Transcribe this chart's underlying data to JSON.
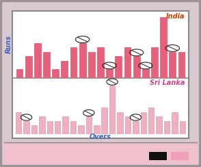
{
  "india_label": "India",
  "srilanka_label": "Sri Lanka",
  "xlabel": "Overs",
  "ylabel": "Runs",
  "india_color": "#e8607a",
  "srilanka_color": "#f0b0c0",
  "india_bars": [
    2,
    5,
    8,
    6,
    2,
    4,
    7,
    8,
    6,
    7,
    2,
    5,
    7,
    5,
    2,
    7,
    14,
    6,
    6
  ],
  "srilanka_bars": [
    5,
    3,
    2,
    4,
    3,
    3,
    4,
    3,
    2,
    4,
    2,
    6,
    11,
    5,
    4,
    3,
    5,
    6,
    4,
    3,
    5,
    3
  ],
  "india_wickets_idx": [
    7,
    10,
    13,
    14,
    17
  ],
  "srilanka_wickets_idx": [
    1,
    9,
    12,
    15
  ],
  "outer_bg": "#b8a0a8",
  "frame_bg": "#d8c8d0",
  "inner_bg": "#ffffff",
  "label_color_india": "#cc4400",
  "label_color_srilanka": "#cc4488",
  "axis_label_color": "#4060c0",
  "bottom_strip_color": "#f0c0cc",
  "outer_border_color": "#a09098",
  "inner_border_color": "#888888"
}
